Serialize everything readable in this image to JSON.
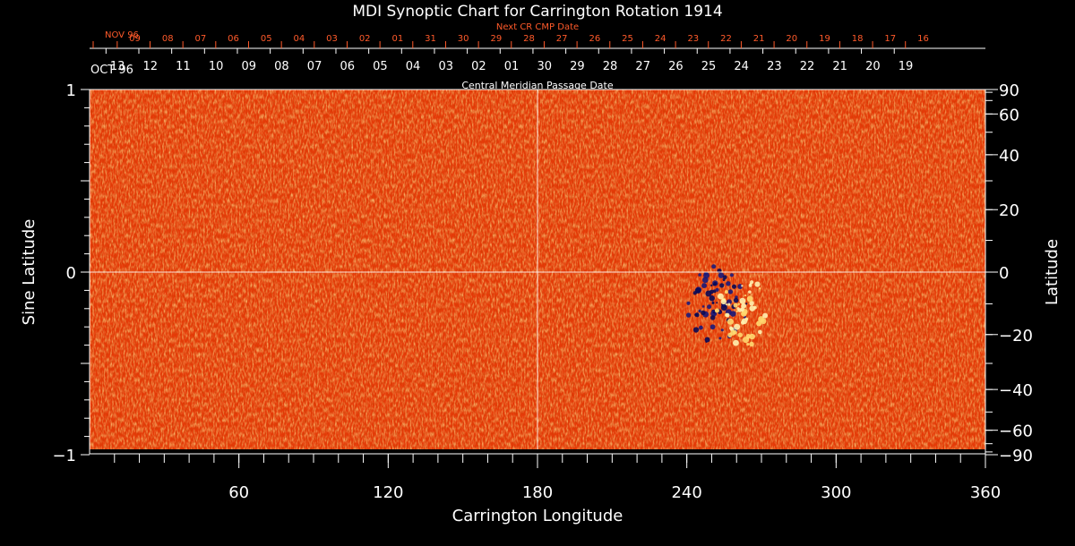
{
  "chart_data": {
    "type": "heatmap",
    "title": "MDI Synoptic Chart for Carrington Rotation 1914",
    "xlabel": "Carrington Longitude",
    "ylabel_left": "Sine Latitude",
    "ylabel_right": "Latitude",
    "xlim": [
      0,
      360
    ],
    "ylim_sine": [
      -1,
      1
    ],
    "x_ticks": [
      60,
      120,
      180,
      240,
      300,
      360
    ],
    "y_left_ticks": [
      {
        "value": 1,
        "label": "1"
      },
      {
        "value": 0,
        "label": "0"
      },
      {
        "value": -1,
        "label": "−1"
      }
    ],
    "y_right_ticks": [
      {
        "value": 90,
        "label": "90"
      },
      {
        "value": 60,
        "label": "60"
      },
      {
        "value": 40,
        "label": "40"
      },
      {
        "value": 20,
        "label": "20"
      },
      {
        "value": 0,
        "label": "0"
      },
      {
        "value": -20,
        "label": "−20"
      },
      {
        "value": -40,
        "label": "−40"
      },
      {
        "value": -60,
        "label": "−60"
      },
      {
        "value": -90,
        "label": "−90"
      }
    ],
    "gridlines": {
      "longitude": 180,
      "sine_latitude": 0
    },
    "colormap": [
      "#6a0a00",
      "#c01800",
      "#ff3a00",
      "#ff7a20",
      "#ffb040",
      "#ffe080"
    ],
    "negative_color": "#101060",
    "active_regions": [
      {
        "longitude": 252,
        "sine_latitude": -0.18,
        "polarity": "negative"
      },
      {
        "longitude": 262,
        "sine_latitude": -0.22,
        "polarity": "positive"
      }
    ],
    "cmp_axis": {
      "label": "Central Meridian Passage Date",
      "start_label": "OCT 96",
      "dates": [
        "13",
        "12",
        "11",
        "10",
        "09",
        "08",
        "07",
        "06",
        "05",
        "04",
        "03",
        "02",
        "01",
        "30",
        "29",
        "28",
        "27",
        "26",
        "25",
        "24",
        "23",
        "22",
        "21",
        "20",
        "19"
      ]
    },
    "next_cmp_axis": {
      "label": "Next CR CMP Date",
      "start_label": "NOV 96",
      "dates": [
        "09",
        "08",
        "07",
        "06",
        "05",
        "04",
        "03",
        "02",
        "01",
        "31",
        "30",
        "29",
        "28",
        "27",
        "26",
        "25",
        "24",
        "23",
        "22",
        "21",
        "20",
        "19",
        "18",
        "17",
        "16"
      ]
    }
  }
}
